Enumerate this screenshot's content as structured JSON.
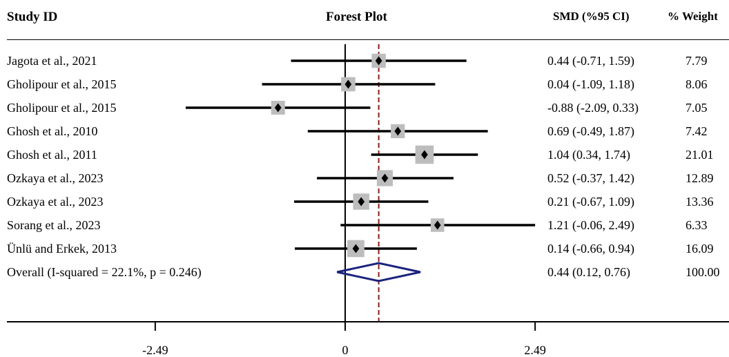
{
  "headers": {
    "study": "Study ID",
    "plot": "Forest Plot",
    "ci": "SMD (%95 CI)",
    "weight": "% Weight"
  },
  "rows": [
    {
      "study": "Jagota et al., 2021",
      "ci": "0.44 (-0.71, 1.59)",
      "weight": "7.79"
    },
    {
      "study": "Gholipour et al., 2015",
      "ci": "0.04 (-1.09, 1.18)",
      "weight": "8.06"
    },
    {
      "study": "Gholipour et al., 2015",
      "ci": "-0.88 (-2.09, 0.33)",
      "weight": "7.05"
    },
    {
      "study": "Ghosh et al., 2010",
      "ci": "0.69 (-0.49, 1.87)",
      "weight": "7.42"
    },
    {
      "study": "Ghosh et al., 2011",
      "ci": "1.04 (0.34, 1.74)",
      "weight": "21.01"
    },
    {
      "study": "Ozkaya et al., 2023",
      "ci": "0.52 (-0.37, 1.42)",
      "weight": "12.89"
    },
    {
      "study": "Ozkaya et al., 2023",
      "ci": "0.21 (-0.67, 1.09)",
      "weight": "13.36"
    },
    {
      "study": "Sorang et al., 2023",
      "ci": "1.21 (-0.06, 2.49)",
      "weight": "6.33"
    },
    {
      "study": "Ünlü and Erkek, 2013",
      "ci": "0.14 (-0.66, 0.94)",
      "weight": "16.09"
    }
  ],
  "overall": {
    "study": "Overall  (I-squared = 22.1%, p = 0.246)",
    "ci": "0.44 (0.12, 0.76)",
    "weight": "100.00"
  },
  "x_ticks": [
    "-2.49",
    "0",
    "2.49"
  ],
  "colors": {
    "marker": "#000000",
    "box": "#bdbdbd",
    "diamond": "#1a237e",
    "ref_line": "#8b1a1a",
    "axis": "#000000"
  },
  "chart_data": {
    "type": "forest",
    "xlim": [
      -2.49,
      2.49
    ],
    "x_ticks": [
      -2.49,
      0,
      2.49
    ],
    "null_line": 0,
    "overall_line": 0.44,
    "studies": [
      {
        "label": "Jagota et al., 2021",
        "estimate": 0.44,
        "lower": -0.71,
        "upper": 1.59,
        "weight": 7.79
      },
      {
        "label": "Gholipour et al., 2015",
        "estimate": 0.04,
        "lower": -1.09,
        "upper": 1.18,
        "weight": 8.06
      },
      {
        "label": "Gholipour et al., 2015",
        "estimate": -0.88,
        "lower": -2.09,
        "upper": 0.33,
        "weight": 7.05
      },
      {
        "label": "Ghosh et al., 2010",
        "estimate": 0.69,
        "lower": -0.49,
        "upper": 1.87,
        "weight": 7.42
      },
      {
        "label": "Ghosh et al., 2011",
        "estimate": 1.04,
        "lower": 0.34,
        "upper": 1.74,
        "weight": 21.01
      },
      {
        "label": "Ozkaya et al., 2023",
        "estimate": 0.52,
        "lower": -0.37,
        "upper": 1.42,
        "weight": 12.89
      },
      {
        "label": "Ozkaya et al., 2023",
        "estimate": 0.21,
        "lower": -0.67,
        "upper": 1.09,
        "weight": 13.36
      },
      {
        "label": "Sorang et al., 2023",
        "estimate": 1.21,
        "lower": -0.06,
        "upper": 2.49,
        "weight": 6.33
      },
      {
        "label": "Ünlü and Erkek, 2013",
        "estimate": 0.14,
        "lower": -0.66,
        "upper": 0.94,
        "weight": 16.09
      }
    ],
    "overall": {
      "label": "Overall  (I-squared = 22.1%, p = 0.246)",
      "estimate": 0.44,
      "lower": 0.12,
      "upper": 0.76,
      "weight": 100.0,
      "i_squared": 22.1,
      "p": 0.246
    }
  }
}
